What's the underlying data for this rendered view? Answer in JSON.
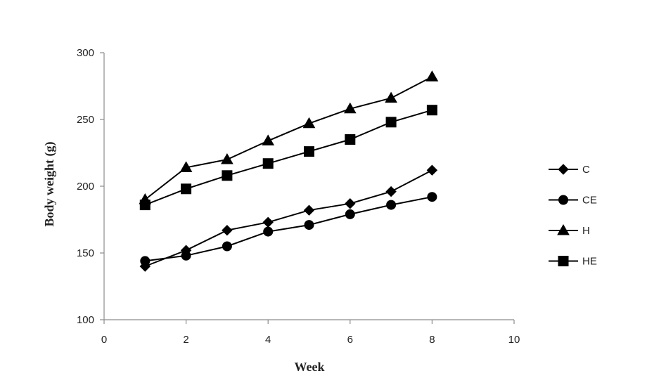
{
  "chart_data": {
    "type": "line",
    "title": "",
    "xlabel": "Week",
    "ylabel": "Body weight (g)",
    "xlim": [
      0,
      10
    ],
    "ylim": [
      100,
      300
    ],
    "xticks": [
      0,
      2,
      4,
      6,
      8,
      10
    ],
    "yticks": [
      100,
      150,
      200,
      250,
      300
    ],
    "grid": false,
    "legend_position": "right",
    "line_color": "#000000",
    "x": [
      1,
      2,
      3,
      4,
      5,
      6,
      7,
      8
    ],
    "series": [
      {
        "name": "C",
        "marker": "diamond",
        "values": [
          140,
          152,
          167,
          173,
          182,
          187,
          196,
          212
        ]
      },
      {
        "name": "CE",
        "marker": "circle",
        "values": [
          144,
          148,
          155,
          166,
          171,
          179,
          186,
          192
        ]
      },
      {
        "name": "H",
        "marker": "triangle",
        "values": [
          190,
          214,
          220,
          234,
          247,
          258,
          266,
          282
        ]
      },
      {
        "name": "HE",
        "marker": "square",
        "values": [
          186,
          198,
          208,
          217,
          226,
          235,
          248,
          257
        ]
      }
    ]
  }
}
